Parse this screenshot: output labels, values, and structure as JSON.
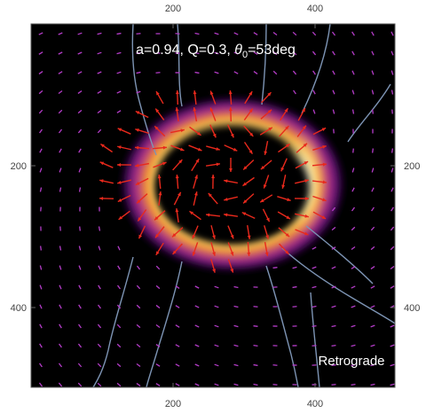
{
  "chart_data": {
    "type": "heatmap",
    "title": {
      "prefix": "a=0.94, Q=0.3, ",
      "theta_symbol": "θ",
      "theta_subscript": "0",
      "suffix": "=53deg"
    },
    "annotation": "Retrograde",
    "xlim": [
      0,
      512
    ],
    "ylim": [
      0,
      512
    ],
    "y_axis_inverted": true,
    "x_ticks": [
      "200",
      "400"
    ],
    "y_ticks": [
      "200",
      "400"
    ],
    "x_tick_values": [
      200,
      400
    ],
    "y_tick_values": [
      200,
      400
    ],
    "colormap": "black-purple-orange-white (inferno-like)",
    "ring": {
      "center": [
        262,
        212
      ],
      "major_radius": 100,
      "minor_radius": 68,
      "brightest_side": "right"
    },
    "inner_polarization_color": "#e8291c",
    "outer_polarization_color": "#b43cc8",
    "streamline_color": "#7d94b4",
    "ring_colors": [
      "#000000",
      "#3a0a5a",
      "#8a1f8a",
      "#d9402a",
      "#f59a23",
      "#ffe27a",
      "#ffffff"
    ]
  }
}
